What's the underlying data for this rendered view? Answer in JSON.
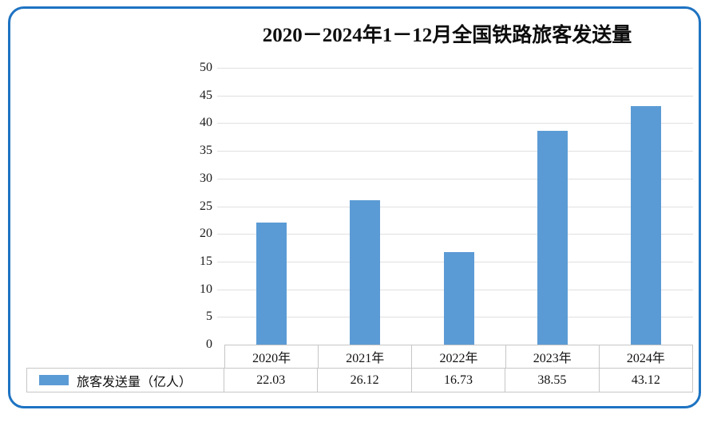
{
  "frame": {
    "border_color": "#1e73c2",
    "background": "#ffffff"
  },
  "chart_data": {
    "type": "bar",
    "title": "2020－2024年1－12月全国铁路旅客发送量",
    "categories": [
      "2020年",
      "2021年",
      "2022年",
      "2023年",
      "2024年"
    ],
    "series": [
      {
        "name": "旅客发送量（亿人）",
        "values": [
          22.03,
          26.12,
          16.73,
          38.55,
          43.12
        ]
      }
    ],
    "xlabel": "",
    "ylabel": "",
    "ylim": [
      0,
      50
    ],
    "yticks": [
      0,
      5,
      10,
      15,
      20,
      25,
      30,
      35,
      40,
      45,
      50
    ],
    "grid": true,
    "gridline_color": "#e0e0e0",
    "bar_color": "#5B9BD5",
    "legend_position": "bottom-table"
  },
  "data_table": {
    "legend_label": "旅客发送量（亿人）",
    "columns": [
      "2020年",
      "2021年",
      "2022年",
      "2023年",
      "2024年"
    ],
    "values": [
      "22.03",
      "26.12",
      "16.73",
      "38.55",
      "43.12"
    ]
  }
}
